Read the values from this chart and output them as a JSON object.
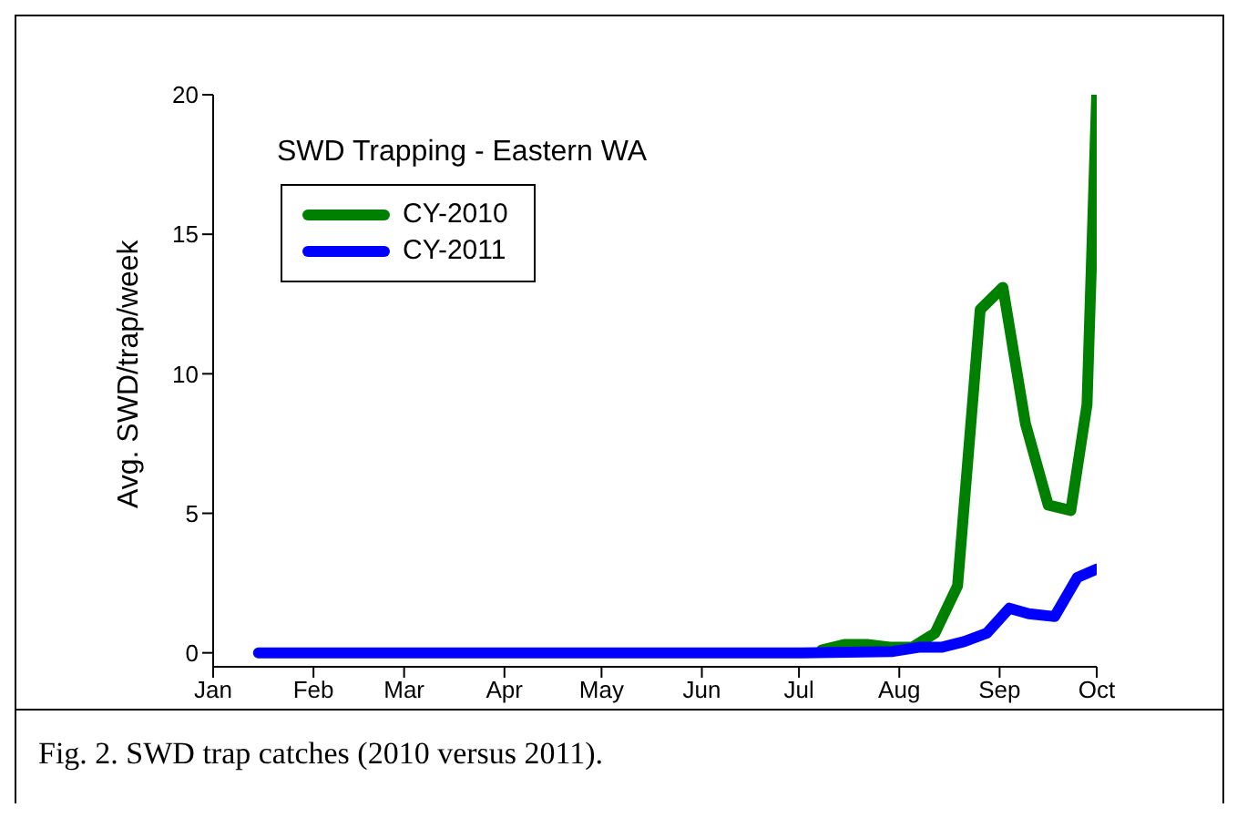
{
  "chart_data": {
    "type": "line",
    "title": "SWD Trapping - Eastern WA",
    "ylabel": "Avg. SWD/trap/week",
    "annotations": [
      "Fig. 2.  SWD trap catches (2010 versus 2011)."
    ],
    "series": [
      {
        "name": "CY-2010",
        "color": "#008000",
        "x": [
          "--07-08",
          "--07-15",
          "--07-22",
          "--07-29",
          "--08-05",
          "--08-12",
          "--08-19",
          "--08-26",
          "--09-02",
          "--09-09",
          "--09-16",
          "--09-23",
          "--09-28",
          "--10-01"
        ],
        "values": [
          0.1,
          0.3,
          0.3,
          0.2,
          0.2,
          0.7,
          2.4,
          12.3,
          13.1,
          8.2,
          5.3,
          5.1,
          8.9,
          20
        ]
      },
      {
        "name": "CY-2011",
        "color": "#0000ff",
        "x": [
          "--01-15",
          "--02-12",
          "--03-12",
          "--04-09",
          "--05-07",
          "--06-04",
          "--07-02",
          "--07-30",
          "--08-07",
          "--08-14",
          "--08-21",
          "--08-28",
          "--09-04",
          "--09-10",
          "--09-18",
          "--09-25",
          "--10-01"
        ],
        "values": [
          0,
          0,
          0,
          0,
          0,
          0,
          0,
          0.05,
          0.2,
          0.2,
          0.4,
          0.7,
          1.6,
          1.4,
          1.3,
          2.7,
          3.0
        ]
      }
    ],
    "xlim": [
      "--01-01",
      "--10-01"
    ],
    "xticks": [
      {
        "value": "--01-01",
        "label": "Jan"
      },
      {
        "value": "--02-01",
        "label": "Feb"
      },
      {
        "value": "--03-01",
        "label": "Mar"
      },
      {
        "value": "--04-01",
        "label": "Apr"
      },
      {
        "value": "--05-01",
        "label": "May"
      },
      {
        "value": "--06-01",
        "label": "Jun"
      },
      {
        "value": "--07-01",
        "label": "Jul"
      },
      {
        "value": "--08-01",
        "label": "Aug"
      },
      {
        "value": "--09-01",
        "label": "Sep"
      },
      {
        "value": "--10-01",
        "label": "Oct"
      }
    ],
    "ylim": [
      -0.5,
      20
    ],
    "yticks": [
      0,
      5,
      10,
      15,
      20
    ],
    "legend": "top left",
    "grid": false,
    "marker": "none",
    "line_style": "solid"
  }
}
